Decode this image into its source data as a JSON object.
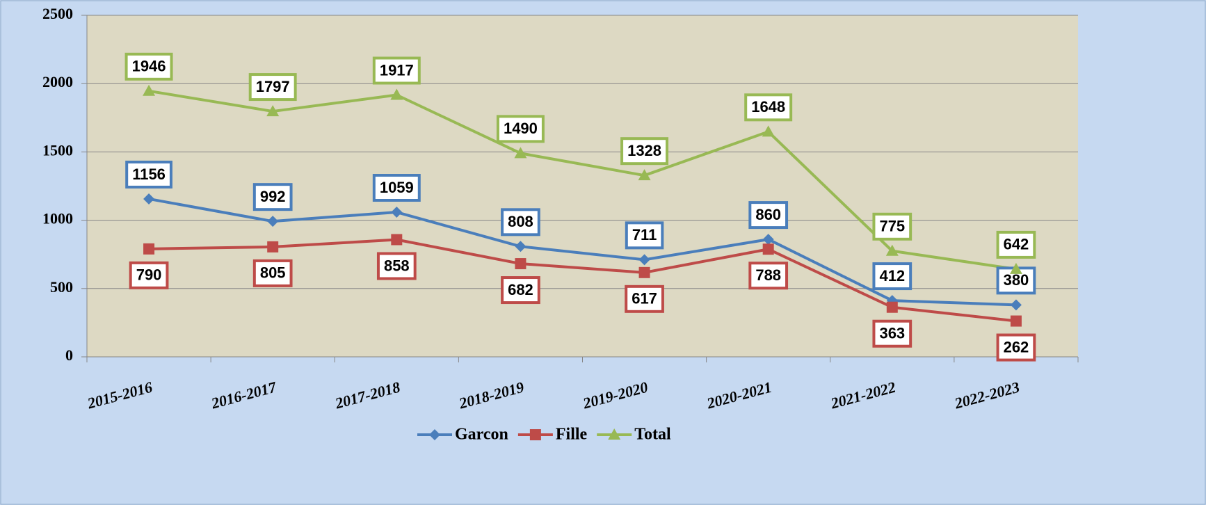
{
  "chart_data": {
    "type": "line",
    "categories": [
      "2015-2016",
      "2016-2017",
      "2017-2018",
      "2018-2019",
      "2019-2020",
      "2020-2021",
      "2021-2022",
      "2022-2023"
    ],
    "series": [
      {
        "name": "Garcon",
        "color": "#4a7ebb",
        "marker": "diamond",
        "label_position": "above",
        "values": [
          1156,
          992,
          1059,
          808,
          711,
          860,
          412,
          380
        ]
      },
      {
        "name": "Fille",
        "color": "#be4b48",
        "marker": "square",
        "label_position": "below",
        "values": [
          790,
          805,
          858,
          682,
          617,
          788,
          363,
          262
        ]
      },
      {
        "name": "Total",
        "color": "#98b954",
        "marker": "triangle",
        "label_position": "above",
        "values": [
          1946,
          1797,
          1917,
          1490,
          1328,
          1648,
          775,
          642
        ]
      }
    ],
    "ylim": [
      0,
      2500
    ],
    "yticks": [
      0,
      500,
      1000,
      1500,
      2000,
      2500
    ],
    "grid": true,
    "legend": "bottom"
  }
}
